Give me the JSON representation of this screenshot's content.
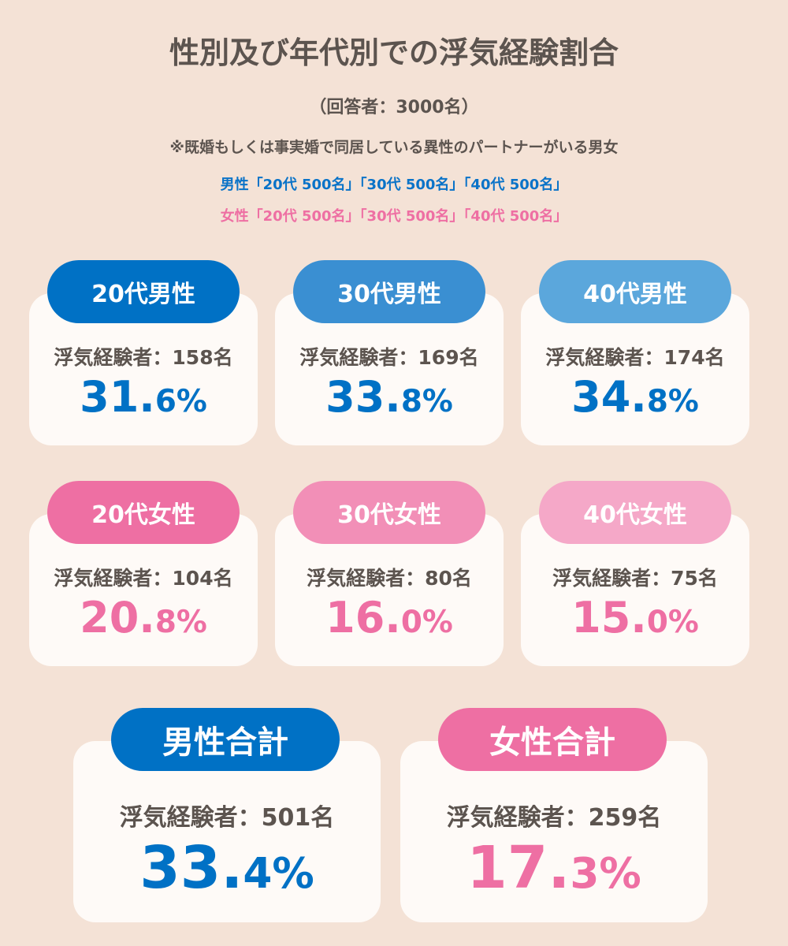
{
  "title": "性別及び年代別での浮気経験割合",
  "respondents": "（回答者：3000名）",
  "note": "※既婚もしくは事実婚で同居している異性のパートナーがいる男女",
  "male_breakdown": "男性「20代 500名」「30代 500名」「40代 500名」",
  "female_breakdown": "女性「20代 500名」「30代 500名」「40代 500名」",
  "colors": {
    "male_text": "#0a73c8",
    "female_text": "#ee6fa3",
    "background": "#f4e2d6"
  },
  "cards": [
    {
      "label": "20代男性",
      "count": "浮気経験者：158名",
      "pct_int": "31.",
      "pct_dec": "6%",
      "pill_color": "#0071c5",
      "pct_color": "#0071c5"
    },
    {
      "label": "30代男性",
      "count": "浮気経験者：169名",
      "pct_int": "33.",
      "pct_dec": "8%",
      "pill_color": "#3a8fd2",
      "pct_color": "#0071c5"
    },
    {
      "label": "40代男性",
      "count": "浮気経験者：174名",
      "pct_int": "34.",
      "pct_dec": "8%",
      "pill_color": "#5ba7dc",
      "pct_color": "#0071c5"
    },
    {
      "label": "20代女性",
      "count": "浮気経験者：104名",
      "pct_int": "20.",
      "pct_dec": "8%",
      "pill_color": "#ee6fa3",
      "pct_color": "#ee6fa3"
    },
    {
      "label": "30代女性",
      "count": "浮気経験者：80名",
      "pct_int": "16.",
      "pct_dec": "0%",
      "pill_color": "#f28fb7",
      "pct_color": "#ee6fa3"
    },
    {
      "label": "40代女性",
      "count": "浮気経験者：75名",
      "pct_int": "15.",
      "pct_dec": "0%",
      "pill_color": "#f5a8c8",
      "pct_color": "#ee6fa3"
    }
  ],
  "totals": [
    {
      "label": "男性合計",
      "count": "浮気経験者：501名",
      "pct_int": "33.",
      "pct_dec": "4%",
      "pill_color": "#0071c5",
      "pct_color": "#0071c5"
    },
    {
      "label": "女性合計",
      "count": "浮気経験者：259名",
      "pct_int": "17.",
      "pct_dec": "3%",
      "pill_color": "#ee6fa3",
      "pct_color": "#ee6fa3"
    }
  ]
}
